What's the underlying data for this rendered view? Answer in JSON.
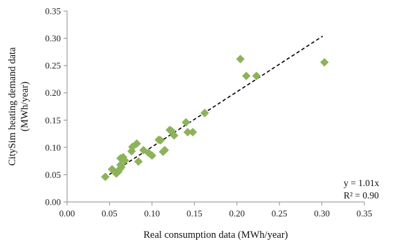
{
  "chart_data": {
    "type": "scatter",
    "xlabel": "Real consumption data (MWh/year)",
    "ylabel": [
      "CitySim heating demand data",
      "(MWh/year)"
    ],
    "xlim": [
      0,
      0.35
    ],
    "ylim": [
      0,
      0.35
    ],
    "xticks": [
      "0.00",
      "0.05",
      "0.10",
      "0.15",
      "0.20",
      "0.25",
      "0.30",
      "0.35"
    ],
    "yticks": [
      "0.00",
      "0.05",
      "0.10",
      "0.15",
      "0.20",
      "0.25",
      "0.30",
      "0.35"
    ],
    "grid": false,
    "marker": "diamond",
    "marker_color": "#8db35a",
    "points": [
      {
        "x": 0.045,
        "y": 0.046
      },
      {
        "x": 0.053,
        "y": 0.06
      },
      {
        "x": 0.058,
        "y": 0.052
      },
      {
        "x": 0.06,
        "y": 0.055
      },
      {
        "x": 0.062,
        "y": 0.06
      },
      {
        "x": 0.063,
        "y": 0.068
      },
      {
        "x": 0.064,
        "y": 0.064
      },
      {
        "x": 0.063,
        "y": 0.08
      },
      {
        "x": 0.066,
        "y": 0.082
      },
      {
        "x": 0.068,
        "y": 0.076
      },
      {
        "x": 0.076,
        "y": 0.093
      },
      {
        "x": 0.077,
        "y": 0.101
      },
      {
        "x": 0.082,
        "y": 0.107
      },
      {
        "x": 0.084,
        "y": 0.074
      },
      {
        "x": 0.09,
        "y": 0.095
      },
      {
        "x": 0.096,
        "y": 0.09
      },
      {
        "x": 0.1,
        "y": 0.085
      },
      {
        "x": 0.108,
        "y": 0.114
      },
      {
        "x": 0.11,
        "y": 0.113
      },
      {
        "x": 0.113,
        "y": 0.092
      },
      {
        "x": 0.115,
        "y": 0.095
      },
      {
        "x": 0.121,
        "y": 0.132
      },
      {
        "x": 0.123,
        "y": 0.13
      },
      {
        "x": 0.126,
        "y": 0.122
      },
      {
        "x": 0.14,
        "y": 0.146
      },
      {
        "x": 0.142,
        "y": 0.128
      },
      {
        "x": 0.148,
        "y": 0.128
      },
      {
        "x": 0.162,
        "y": 0.163
      },
      {
        "x": 0.204,
        "y": 0.262
      },
      {
        "x": 0.211,
        "y": 0.231
      },
      {
        "x": 0.223,
        "y": 0.231
      },
      {
        "x": 0.303,
        "y": 0.256
      }
    ],
    "trendline": {
      "slope": 1.01,
      "x_range": [
        0.044,
        0.301
      ],
      "style": "dashed",
      "color": "#000000"
    },
    "annotation": {
      "equation": "y = 1.01x",
      "r2": "R² = 0.90"
    }
  }
}
